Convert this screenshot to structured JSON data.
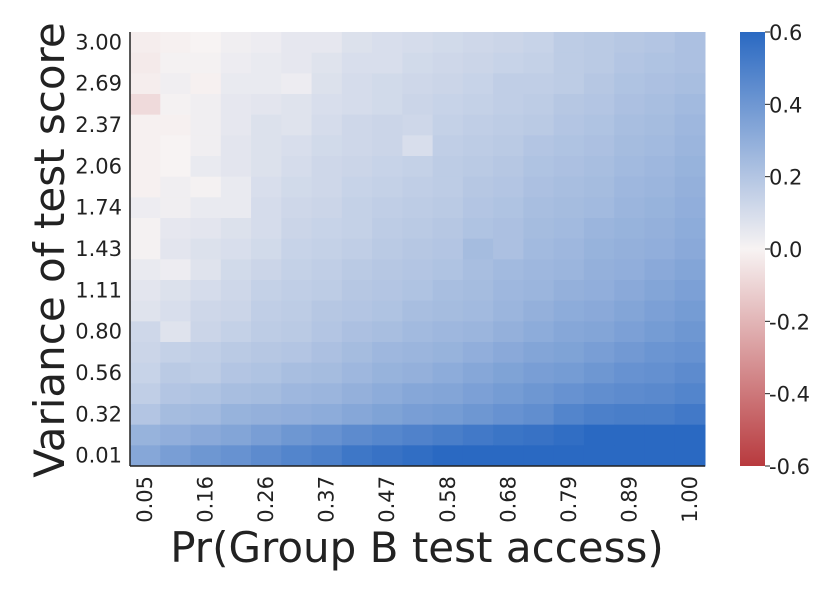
{
  "chart_data": {
    "type": "heatmap",
    "x_label": "Pr(Group B test access)",
    "y_label": "Variance of test score",
    "x_categories": [
      "0.05",
      null,
      "0.16",
      null,
      "0.26",
      null,
      "0.37",
      null,
      "0.47",
      null,
      "0.58",
      null,
      "0.68",
      null,
      "0.79",
      null,
      "0.89",
      null,
      "1.00"
    ],
    "y_categories": [
      "3.00",
      null,
      "2.69",
      null,
      "2.37",
      null,
      "2.06",
      null,
      "1.74",
      null,
      "1.43",
      null,
      "1.11",
      null,
      "0.80",
      null,
      "0.56",
      null,
      "0.32",
      null,
      "0.01"
    ],
    "values": [
      [
        -0.02,
        -0.01,
        0.0,
        0.02,
        0.03,
        0.05,
        0.05,
        0.08,
        0.09,
        0.1,
        0.11,
        0.12,
        0.13,
        0.14,
        0.17,
        0.18,
        0.19,
        0.2,
        0.22
      ],
      [
        -0.03,
        0.01,
        0.01,
        0.03,
        0.04,
        0.05,
        0.07,
        0.09,
        0.09,
        0.11,
        0.12,
        0.13,
        0.14,
        0.15,
        0.17,
        0.18,
        0.2,
        0.21,
        0.22
      ],
      [
        -0.02,
        0.02,
        -0.01,
        0.04,
        0.04,
        0.03,
        0.08,
        0.1,
        0.11,
        0.12,
        0.13,
        0.14,
        0.16,
        0.16,
        0.17,
        0.19,
        0.21,
        0.22,
        0.23
      ],
      [
        -0.08,
        0.01,
        0.02,
        0.05,
        0.06,
        0.07,
        0.09,
        0.1,
        0.11,
        0.13,
        0.14,
        0.15,
        0.16,
        0.17,
        0.19,
        0.2,
        0.22,
        0.23,
        0.25
      ],
      [
        -0.01,
        -0.01,
        0.02,
        0.05,
        0.08,
        0.07,
        0.1,
        0.12,
        0.13,
        0.12,
        0.15,
        0.16,
        0.17,
        0.18,
        0.2,
        0.21,
        0.23,
        0.24,
        0.26
      ],
      [
        -0.01,
        0.0,
        0.02,
        0.06,
        0.08,
        0.09,
        0.11,
        0.12,
        0.13,
        0.09,
        0.16,
        0.17,
        0.18,
        0.2,
        0.21,
        0.22,
        0.24,
        0.25,
        0.27
      ],
      [
        -0.01,
        0.0,
        0.04,
        0.06,
        0.08,
        0.1,
        0.12,
        0.13,
        0.14,
        0.15,
        0.17,
        0.18,
        0.19,
        0.21,
        0.22,
        0.23,
        0.25,
        0.26,
        0.28
      ],
      [
        -0.01,
        0.02,
        0.01,
        0.04,
        0.09,
        0.11,
        0.12,
        0.14,
        0.15,
        0.16,
        0.17,
        0.19,
        0.2,
        0.22,
        0.23,
        0.24,
        0.26,
        0.27,
        0.29
      ],
      [
        0.03,
        0.02,
        0.04,
        0.04,
        0.1,
        0.12,
        0.13,
        0.15,
        0.16,
        0.17,
        0.18,
        0.2,
        0.21,
        0.23,
        0.24,
        0.25,
        0.27,
        0.28,
        0.3
      ],
      [
        0.01,
        0.05,
        0.06,
        0.08,
        0.1,
        0.13,
        0.14,
        0.15,
        0.17,
        0.18,
        0.19,
        0.21,
        0.22,
        0.24,
        0.25,
        0.27,
        0.28,
        0.29,
        0.31
      ],
      [
        0.01,
        0.06,
        0.08,
        0.09,
        0.11,
        0.14,
        0.15,
        0.16,
        0.18,
        0.19,
        0.2,
        0.24,
        0.22,
        0.25,
        0.26,
        0.28,
        0.29,
        0.3,
        0.32
      ],
      [
        0.04,
        0.03,
        0.07,
        0.11,
        0.13,
        0.15,
        0.16,
        0.18,
        0.19,
        0.2,
        0.21,
        0.23,
        0.25,
        0.26,
        0.27,
        0.29,
        0.3,
        0.32,
        0.34
      ],
      [
        0.06,
        0.08,
        0.1,
        0.12,
        0.15,
        0.16,
        0.17,
        0.19,
        0.2,
        0.21,
        0.23,
        0.24,
        0.26,
        0.27,
        0.29,
        0.3,
        0.32,
        0.34,
        0.36
      ],
      [
        0.07,
        0.09,
        0.12,
        0.13,
        0.16,
        0.17,
        0.19,
        0.2,
        0.21,
        0.23,
        0.24,
        0.25,
        0.27,
        0.29,
        0.31,
        0.32,
        0.34,
        0.36,
        0.38
      ],
      [
        0.12,
        0.07,
        0.13,
        0.15,
        0.17,
        0.18,
        0.2,
        0.22,
        0.23,
        0.25,
        0.26,
        0.27,
        0.29,
        0.31,
        0.33,
        0.34,
        0.36,
        0.38,
        0.4
      ],
      [
        0.13,
        0.15,
        0.16,
        0.18,
        0.19,
        0.2,
        0.22,
        0.24,
        0.26,
        0.27,
        0.28,
        0.3,
        0.32,
        0.34,
        0.35,
        0.37,
        0.39,
        0.41,
        0.42
      ],
      [
        0.14,
        0.18,
        0.17,
        0.2,
        0.21,
        0.23,
        0.24,
        0.26,
        0.28,
        0.29,
        0.31,
        0.33,
        0.35,
        0.37,
        0.38,
        0.4,
        0.42,
        0.43,
        0.45
      ],
      [
        0.16,
        0.2,
        0.21,
        0.23,
        0.24,
        0.26,
        0.27,
        0.29,
        0.31,
        0.33,
        0.34,
        0.36,
        0.38,
        0.4,
        0.42,
        0.44,
        0.45,
        0.46,
        0.48
      ],
      [
        0.2,
        0.24,
        0.25,
        0.28,
        0.29,
        0.3,
        0.31,
        0.33,
        0.35,
        0.37,
        0.38,
        0.4,
        0.42,
        0.44,
        0.48,
        0.5,
        0.51,
        0.51,
        0.53
      ],
      [
        0.28,
        0.3,
        0.32,
        0.34,
        0.37,
        0.4,
        0.42,
        0.45,
        0.47,
        0.49,
        0.51,
        0.53,
        0.55,
        0.56,
        0.58,
        0.6,
        0.6,
        0.6,
        0.6
      ],
      [
        0.33,
        0.37,
        0.4,
        0.42,
        0.45,
        0.48,
        0.5,
        0.54,
        0.56,
        0.58,
        0.6,
        0.6,
        0.6,
        0.6,
        0.6,
        0.6,
        0.6,
        0.6,
        0.6
      ]
    ],
    "vlim": [
      -0.6,
      0.6
    ],
    "colorbar_ticks": [
      -0.6,
      -0.4,
      -0.2,
      {
        "value": 0,
        "label": "0.0"
      },
      0.2,
      0.4,
      0.6
    ],
    "colormap": {
      "low": "#b83a3e",
      "mid": "#f7f3f3",
      "high": "#2a69c2"
    }
  }
}
